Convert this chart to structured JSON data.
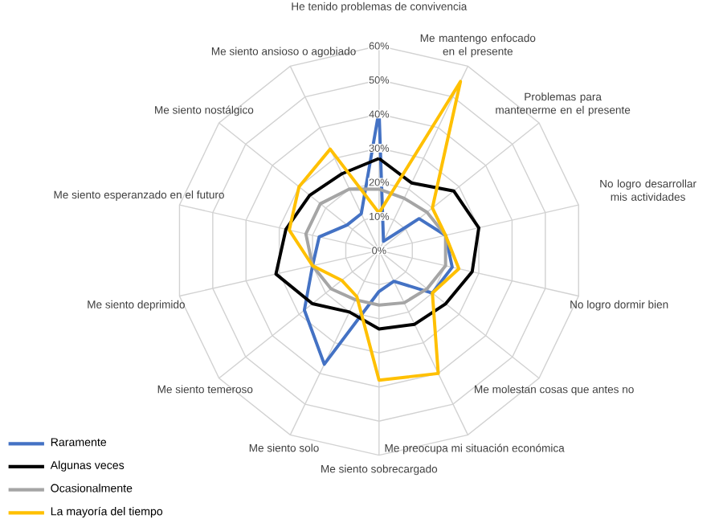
{
  "chart_data": {
    "type": "radar",
    "categories": [
      "He tenido problemas de convivencia",
      "Me mantengo enfocado en el presente",
      "Problemas para mantenerme en el presente",
      "No logro desarrollar mis actividades",
      "No logro dormir bien",
      "Me molestan cosas que antes no",
      "Me preocupa mi situación económica",
      "Me siento sobrecargado",
      "Me siento solo",
      "Me siento temeroso",
      "Me siento deprimido",
      "Me siento esperanzado en el futuro",
      "Me siento nostálgico",
      "Me siento ansioso o agobiado"
    ],
    "series": [
      {
        "name": "Raramente",
        "color": "#4472c4",
        "values": [
          41,
          3,
          15,
          20,
          22,
          20,
          10,
          12,
          37,
          28,
          20,
          18,
          12,
          12
        ]
      },
      {
        "name": "Algunas veces",
        "color": "#000000",
        "values": [
          27,
          22,
          28,
          30,
          28,
          25,
          24,
          23,
          20,
          25,
          31,
          28,
          26,
          25
        ]
      },
      {
        "name": "Ocasionalmente",
        "color": "#a5a5a5",
        "values": [
          18,
          17,
          18,
          20,
          20,
          18,
          17,
          16,
          16,
          18,
          20,
          22,
          22,
          20
        ]
      },
      {
        "name": "La mayoría del tiempo",
        "color": "#ffc000",
        "values": [
          11,
          55,
          20,
          20,
          24,
          20,
          40,
          38,
          15,
          14,
          20,
          27,
          30,
          33
        ]
      }
    ],
    "ylim": [
      0,
      60
    ],
    "yticks": [
      {
        "value": 0,
        "label": "0%"
      },
      {
        "value": 10,
        "label": "10%"
      },
      {
        "value": 20,
        "label": "20%"
      },
      {
        "value": 30,
        "label": "30%"
      },
      {
        "value": 40,
        "label": "40%"
      },
      {
        "value": 50,
        "label": "50%"
      },
      {
        "value": 60,
        "label": "60%"
      }
    ],
    "grid": true,
    "legend": "bottom left"
  }
}
